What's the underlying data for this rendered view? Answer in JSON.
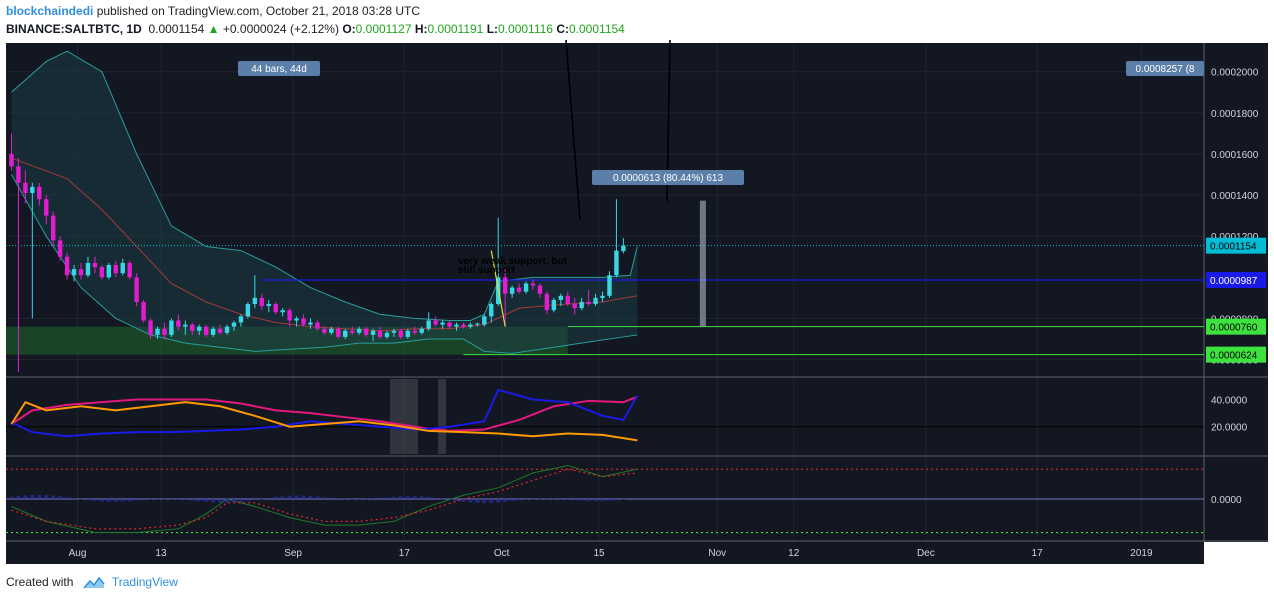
{
  "header": {
    "author": "blockchaindedi",
    "published": "published on TradingView.com, October 21, 2018 03:28 UTC",
    "symbol": "BINANCE:SALTBTC, 1D",
    "last": "0.0001154",
    "change_arrow": "▲",
    "change": "+0.0000024 (+2.12%)",
    "o_label": "O:",
    "o": "0.0001127",
    "h_label": "H:",
    "h": "0.0001191",
    "l_label": "L:",
    "l": "0.0001116",
    "c_label": "C:",
    "c": "0.0001154"
  },
  "footer": {
    "created_with": "Created with",
    "brand": "TradingView"
  },
  "chart_data": {
    "type": "candlestick",
    "x_axis": {
      "range": [
        "2018-07-22",
        "2019-01-10"
      ],
      "ticks": [
        {
          "label": "Aug",
          "date": "2018-08-01"
        },
        {
          "label": "13",
          "date": "2018-08-13"
        },
        {
          "label": "Sep",
          "date": "2018-09-01"
        },
        {
          "label": "17",
          "date": "2018-09-17"
        },
        {
          "label": "Oct",
          "date": "2018-10-01"
        },
        {
          "label": "15",
          "date": "2018-10-15"
        },
        {
          "label": "Nov",
          "date": "2018-11-01"
        },
        {
          "label": "12",
          "date": "2018-11-12"
        },
        {
          "label": "Dec",
          "date": "2018-12-01"
        },
        {
          "label": "17",
          "date": "2018-12-17"
        },
        {
          "label": "2019",
          "date": "2019-01-01"
        }
      ]
    },
    "y_axis": {
      "range": [
        5.2e-05,
        0.000213
      ],
      "ticks": [
        "0.0002000",
        "0.0001800",
        "0.0001600",
        "0.0001400",
        "0.0001200",
        "0.0000800",
        "0.0000600"
      ]
    },
    "price_labels": [
      {
        "text": "0.0001154",
        "value": 0.0001154,
        "color": "#00bcd4"
      },
      {
        "text": "0.0000987",
        "value": 9.87e-05,
        "color": "#1a1ae6"
      },
      {
        "text": "0.0000760",
        "value": 7.6e-05,
        "color": "#3ee23e"
      },
      {
        "text": "0.0000624",
        "value": 6.24e-05,
        "color": "#3ee23e"
      }
    ],
    "offscreen_label": "0.0008257 (8",
    "measure_label": "44 bars, 44d",
    "range_label": "0.0000613 (80.44%) 613",
    "annotation_lines": [
      "very weak support, but",
      "still support"
    ],
    "candles": {
      "start_date": "2018-07-22",
      "ohlc": [
        [
          0.00016,
          0.00017,
          0.000152,
          0.000154
        ],
        [
          0.000154,
          0.000158,
          5.4e-05,
          0.000146
        ],
        [
          0.000146,
          0.000152,
          0.000136,
          0.000141
        ],
        [
          0.000141,
          0.000146,
          8e-05,
          0.000144
        ],
        [
          0.000144,
          0.000146,
          0.000135,
          0.000138
        ],
        [
          0.000138,
          0.00014,
          0.000126,
          0.00013
        ],
        [
          0.00013,
          0.000132,
          0.000115,
          0.000118
        ],
        [
          0.000118,
          0.00012,
          0.000108,
          0.00011
        ],
        [
          0.00011,
          0.000112,
          9.9e-05,
          0.000101
        ],
        [
          0.000101,
          0.000106,
          9.8e-05,
          0.000104
        ],
        [
          0.000104,
          0.000107,
          9.9e-05,
          0.000101
        ],
        [
          0.000101,
          0.00011,
          0.0001,
          0.000107
        ],
        [
          0.000107,
          0.00011,
          0.000102,
          0.000105
        ],
        [
          0.000105,
          0.000106,
          9.9e-05,
          0.0001
        ],
        [
          0.0001,
          0.000107,
          9.9e-05,
          0.000106
        ],
        [
          0.000106,
          0.000108,
          0.0001,
          0.000102
        ],
        [
          0.000102,
          0.000109,
          0.000101,
          0.000107
        ],
        [
          0.000107,
          0.000108,
          9.9e-05,
          0.0001
        ],
        [
          0.0001,
          0.000102,
          8.6e-05,
          8.8e-05
        ],
        [
          8.8e-05,
          8.9e-05,
          7.8e-05,
          7.9e-05
        ],
        [
          7.9e-05,
          8e-05,
          7e-05,
          7.2e-05
        ],
        [
          7.2e-05,
          7.6e-05,
          7e-05,
          7.5e-05
        ],
        [
          7.5e-05,
          7.8e-05,
          7e-05,
          7.2e-05
        ],
        [
          7.2e-05,
          8e-05,
          7.1e-05,
          7.9e-05
        ],
        [
          7.9e-05,
          8.2e-05,
          7.4e-05,
          7.6e-05
        ],
        [
          7.6e-05,
          7.9e-05,
          7.2e-05,
          7.7e-05
        ],
        [
          7.7e-05,
          7.8e-05,
          7.2e-05,
          7.4e-05
        ],
        [
          7.4e-05,
          7.7e-05,
          7.2e-05,
          7.6e-05
        ],
        [
          7.6e-05,
          7.7e-05,
          7.1e-05,
          7.2e-05
        ],
        [
          7.2e-05,
          7.6e-05,
          7.1e-05,
          7.5e-05
        ],
        [
          7.5e-05,
          7.7e-05,
          7.2e-05,
          7.3e-05
        ],
        [
          7.3e-05,
          7.7e-05,
          7.2e-05,
          7.6e-05
        ],
        [
          7.6e-05,
          7.9e-05,
          7.4e-05,
          7.8e-05
        ],
        [
          7.8e-05,
          8.2e-05,
          7.6e-05,
          8.1e-05
        ],
        [
          8.1e-05,
          8.8e-05,
          8e-05,
          8.7e-05
        ],
        [
          8.7e-05,
          0.000101,
          8.5e-05,
          9e-05
        ],
        [
          9e-05,
          9.2e-05,
          8.4e-05,
          8.6e-05
        ],
        [
          8.6e-05,
          8.9e-05,
          8.3e-05,
          8.7e-05
        ],
        [
          8.7e-05,
          8.8e-05,
          8.2e-05,
          8.3e-05
        ],
        [
          8.3e-05,
          8.5e-05,
          8.1e-05,
          8.4e-05
        ],
        [
          8.4e-05,
          8.5e-05,
          7.6e-05,
          7.9e-05
        ],
        [
          7.9e-05,
          8.1e-05,
          7.6e-05,
          8e-05
        ],
        [
          8e-05,
          8.2e-05,
          7.6e-05,
          7.7e-05
        ],
        [
          7.7e-05,
          8e-05,
          7.5e-05,
          7.8e-05
        ],
        [
          7.8e-05,
          7.9e-05,
          7.4e-05,
          7.5e-05
        ],
        [
          7.5e-05,
          7.6e-05,
          7.2e-05,
          7.3e-05
        ],
        [
          7.3e-05,
          7.6e-05,
          7.2e-05,
          7.5e-05
        ],
        [
          7.5e-05,
          7.6e-05,
          7e-05,
          7.1e-05
        ],
        [
          7.1e-05,
          7.5e-05,
          7e-05,
          7.4e-05
        ],
        [
          7.4e-05,
          7.6e-05,
          7.2e-05,
          7.3e-05
        ],
        [
          7.3e-05,
          7.6e-05,
          7.2e-05,
          7.5e-05
        ],
        [
          7.5e-05,
          7.6e-05,
          7.1e-05,
          7.2e-05
        ],
        [
          7.2e-05,
          7.5e-05,
          6.9e-05,
          7.4e-05
        ],
        [
          7.4e-05,
          7.6e-05,
          7e-05,
          7.1e-05
        ],
        [
          7.1e-05,
          7.4e-05,
          7e-05,
          7.3e-05
        ],
        [
          7.3e-05,
          7.5e-05,
          7.1e-05,
          7.4e-05
        ],
        [
          7.4e-05,
          7.5e-05,
          7e-05,
          7.1e-05
        ],
        [
          7.1e-05,
          7.5e-05,
          7e-05,
          7.4e-05
        ],
        [
          7.4e-05,
          7.6e-05,
          7.2e-05,
          7.3e-05
        ],
        [
          7.3e-05,
          7.6e-05,
          7.2e-05,
          7.5e-05
        ],
        [
          7.5e-05,
          8.3e-05,
          7.4e-05,
          7.9e-05
        ],
        [
          7.9e-05,
          8.1e-05,
          7.6e-05,
          7.7e-05
        ],
        [
          7.7e-05,
          7.9e-05,
          7.5e-05,
          7.8e-05
        ],
        [
          7.8e-05,
          7.9e-05,
          7.5e-05,
          7.6e-05
        ],
        [
          7.6e-05,
          7.8e-05,
          7.4e-05,
          7.7e-05
        ],
        [
          7.7e-05,
          7.8e-05,
          7.5e-05,
          7.6e-05
        ],
        [
          7.6e-05,
          7.8e-05,
          7.5e-05,
          7.7e-05
        ],
        [
          7.7e-05,
          7.8e-05,
          7.6e-05,
          7.75e-05
        ],
        [
          7.7e-05,
          8.2e-05,
          7.6e-05,
          8.1e-05
        ],
        [
          8.1e-05,
          8.8e-05,
          7.8e-05,
          8.7e-05
        ],
        [
          8.7e-05,
          0.000129,
          8.6e-05,
          0.0001
        ],
        [
          0.0001,
          0.000104,
          7.6e-05,
          9.2e-05
        ],
        [
          9.2e-05,
          9.6e-05,
          9e-05,
          9.5e-05
        ],
        [
          9.5e-05,
          9.7e-05,
          9.2e-05,
          9.3e-05
        ],
        [
          9.3e-05,
          9.8e-05,
          9.2e-05,
          9.7e-05
        ],
        [
          9.7e-05,
          9.9e-05,
          9.4e-05,
          9.6e-05
        ],
        [
          9.6e-05,
          9.7e-05,
          9e-05,
          9.2e-05
        ],
        [
          9.2e-05,
          9.3e-05,
          8.2e-05,
          8.4e-05
        ],
        [
          8.4e-05,
          9e-05,
          8.3e-05,
          8.9e-05
        ],
        [
          8.9e-05,
          9.2e-05,
          8.6e-05,
          9.1e-05
        ],
        [
          9.1e-05,
          9.3e-05,
          8.6e-05,
          8.7e-05
        ],
        [
          8.7e-05,
          9e-05,
          8.2e-05,
          8.5e-05
        ],
        [
          8.5e-05,
          9e-05,
          8.4e-05,
          8.8e-05
        ],
        [
          8.8e-05,
          9.4e-05,
          8.6e-05,
          8.7e-05
        ],
        [
          8.7e-05,
          9.2e-05,
          8.6e-05,
          9e-05
        ],
        [
          9e-05,
          9.3e-05,
          8.8e-05,
          9.1e-05
        ],
        [
          9.1e-05,
          0.000103,
          9e-05,
          0.000101
        ],
        [
          0.000101,
          0.000138,
          0.0001,
          0.000113
        ],
        [
          0.0001127,
          0.0001191,
          0.0001116,
          0.0001154
        ]
      ]
    },
    "bollinger": {
      "upper": [
        [
          0,
          0.00019
        ],
        [
          5,
          0.000205
        ],
        [
          8,
          0.00021
        ],
        [
          13,
          0.0002
        ],
        [
          18,
          0.00016
        ],
        [
          23,
          0.000125
        ],
        [
          28,
          0.000115
        ],
        [
          33,
          0.000113
        ],
        [
          38,
          0.000105
        ],
        [
          43,
          9.5e-05
        ],
        [
          48,
          8.8e-05
        ],
        [
          53,
          8.2e-05
        ],
        [
          58,
          8e-05
        ],
        [
          63,
          7.9e-05
        ],
        [
          66,
          7.9e-05
        ],
        [
          68,
          8.2e-05
        ],
        [
          70,
          9.8e-05
        ],
        [
          75,
          0.0001
        ],
        [
          80,
          0.0001
        ],
        [
          85,
          0.0001
        ],
        [
          89,
          0.000101
        ],
        [
          90,
          0.000115
        ]
      ],
      "basis": [
        [
          0,
          0.000158
        ],
        [
          8,
          0.000148
        ],
        [
          13,
          0.000133
        ],
        [
          18,
          0.000115
        ],
        [
          23,
          9.7e-05
        ],
        [
          28,
          8.8e-05
        ],
        [
          33,
          8.2e-05
        ],
        [
          38,
          7.8e-05
        ],
        [
          43,
          7.6e-05
        ],
        [
          48,
          7.5e-05
        ],
        [
          53,
          7.4e-05
        ],
        [
          58,
          7.5e-05
        ],
        [
          63,
          7.5e-05
        ],
        [
          68,
          7.7e-05
        ],
        [
          73,
          8.5e-05
        ],
        [
          80,
          8.7e-05
        ],
        [
          85,
          8.8e-05
        ],
        [
          90,
          9.1e-05
        ]
      ],
      "lower": [
        [
          0,
          0.00015
        ],
        [
          5,
          0.00012
        ],
        [
          10,
          9.5e-05
        ],
        [
          15,
          8e-05
        ],
        [
          20,
          7.2e-05
        ],
        [
          25,
          6.8e-05
        ],
        [
          30,
          6.6e-05
        ],
        [
          35,
          6.4e-05
        ],
        [
          40,
          6.5e-05
        ],
        [
          45,
          6.6e-05
        ],
        [
          50,
          6.8e-05
        ],
        [
          55,
          6.8e-05
        ],
        [
          60,
          7e-05
        ],
        [
          65,
          7e-05
        ],
        [
          68,
          6.4e-05
        ],
        [
          72,
          6.3e-05
        ],
        [
          78,
          6.6e-05
        ],
        [
          84,
          6.9e-05
        ],
        [
          88,
          7.1e-05
        ],
        [
          90,
          7.2e-05
        ]
      ]
    },
    "dmi": {
      "y_ticks": [
        "40.0000",
        "20.0000"
      ],
      "range": [
        0,
        55
      ],
      "threshold": 20,
      "series": [
        {
          "color": "#e2187f",
          "points": [
            [
              0,
              22
            ],
            [
              3,
              32
            ],
            [
              8,
              36
            ],
            [
              13,
              38
            ],
            [
              18,
              40
            ],
            [
              23,
              40
            ],
            [
              28,
              40
            ],
            [
              33,
              37
            ],
            [
              38,
              32
            ],
            [
              43,
              30
            ],
            [
              48,
              27
            ],
            [
              53,
              24
            ],
            [
              58,
              20
            ],
            [
              63,
              17
            ],
            [
              68,
              18
            ],
            [
              73,
              25
            ],
            [
              78,
              35
            ],
            [
              83,
              39
            ],
            [
              88,
              38
            ],
            [
              90,
              42
            ]
          ]
        },
        {
          "color": "#1a1ae6",
          "points": [
            [
              0,
              23
            ],
            [
              3,
              16
            ],
            [
              8,
              13
            ],
            [
              13,
              15
            ],
            [
              18,
              16
            ],
            [
              23,
              16
            ],
            [
              28,
              17
            ],
            [
              33,
              18
            ],
            [
              38,
              20
            ],
            [
              43,
              24
            ],
            [
              48,
              22
            ],
            [
              53,
              20
            ],
            [
              58,
              18
            ],
            [
              63,
              20
            ],
            [
              68,
              24
            ],
            [
              70,
              47
            ],
            [
              75,
              40
            ],
            [
              80,
              38
            ],
            [
              85,
              28
            ],
            [
              88,
              25
            ],
            [
              90,
              43
            ]
          ]
        },
        {
          "color": "#ff9900",
          "points": [
            [
              0,
              22
            ],
            [
              2,
              38
            ],
            [
              5,
              32
            ],
            [
              10,
              35
            ],
            [
              15,
              32
            ],
            [
              20,
              35
            ],
            [
              25,
              38
            ],
            [
              30,
              35
            ],
            [
              35,
              28
            ],
            [
              40,
              20
            ],
            [
              45,
              22
            ],
            [
              50,
              24
            ],
            [
              55,
              21
            ],
            [
              60,
              17
            ],
            [
              65,
              16
            ],
            [
              70,
              15
            ],
            [
              75,
              13
            ],
            [
              80,
              15
            ],
            [
              85,
              14
            ],
            [
              90,
              10
            ]
          ]
        }
      ]
    },
    "macd": {
      "y_ticks": [
        "0.0000"
      ],
      "range": [
        -11,
        11
      ]
    }
  }
}
